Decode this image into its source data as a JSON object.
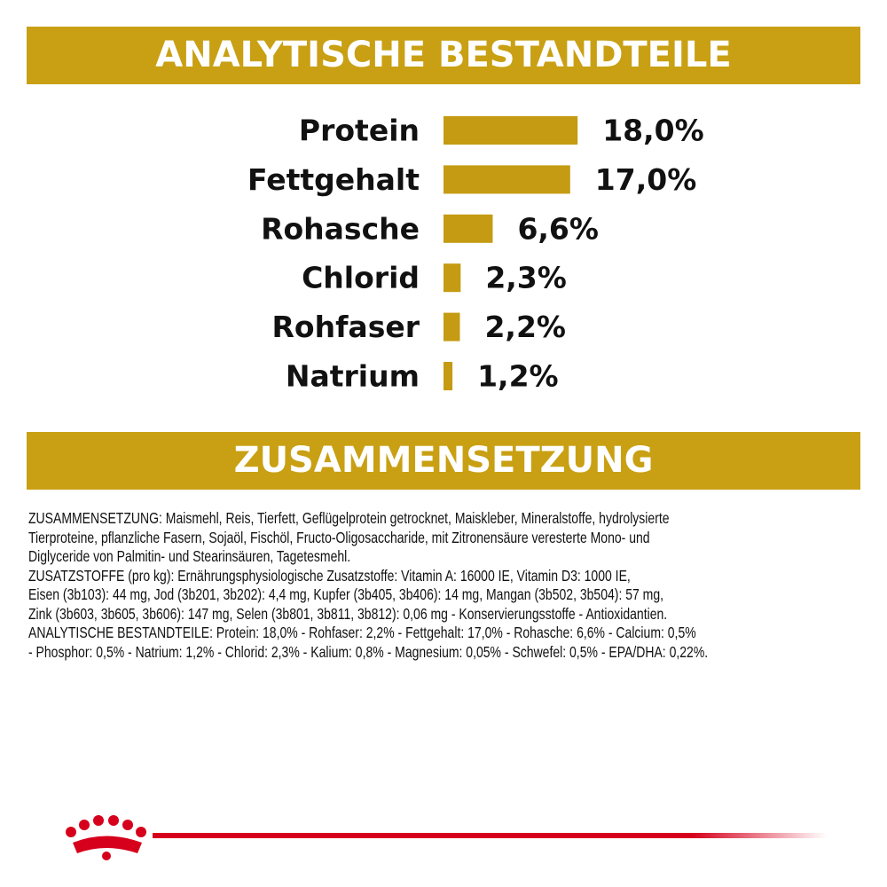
{
  "chart_data": {
    "type": "bar",
    "title": "ANALYTISCHE BESTANDTEILE",
    "categories": [
      "Protein",
      "Fettgehalt",
      "Rohasche",
      "Chlorid",
      "Rohfaser",
      "Natrium"
    ],
    "values": [
      18.0,
      17.0,
      6.6,
      2.3,
      2.2,
      1.2
    ],
    "value_labels": [
      "18,0%",
      "17,0%",
      "6,6%",
      "2,3%",
      "2,2%",
      "1,2%"
    ],
    "color": "#c49b12",
    "orientation": "horizontal"
  },
  "composition": {
    "title": "ZUSAMMENSETZUNG",
    "lines": [
      "ZUSAMMENSETZUNG: Maismehl, Reis, Tierfett, Geflügelprotein getrocknet, Maiskleber, Mineralstoffe, hydrolysierte",
      "Tierproteine, pflanzliche Fasern, Sojaöl, Fischöl, Fructo-Oligosaccharide, mit Zitronensäure veresterte Mono- und",
      "Diglyceride von Palmitin- und Stearinsäuren, Tagetesmehl.",
      "ZUSATZSTOFFE (pro kg): Ernährungsphysiologische Zusatzstoffe: Vitamin A: 16000 IE, Vitamin D3: 1000 IE,",
      "Eisen (3b103): 44 mg, Jod (3b201, 3b202): 4,4 mg, Kupfer (3b405, 3b406): 14 mg, Mangan (3b502, 3b504): 57 mg,",
      "Zink (3b603, 3b605, 3b606): 147 mg, Selen (3b801, 3b811, 3b812): 0,06 mg - Konservierungsstoffe - Antioxidantien.",
      "ANALYTISCHE BESTANDTEILE: Protein: 18,0% - Rohfaser: 2,2% - Fettgehalt: 17,0% - Rohasche: 6,6% - Calcium: 0,5%",
      "- Phosphor: 0,5% - Natrium: 1,2% - Chlorid: 2,3% - Kalium: 0,8% - Magnesium: 0,05% - Schwefel: 0,5% - EPA/DHA: 0,22%."
    ]
  }
}
